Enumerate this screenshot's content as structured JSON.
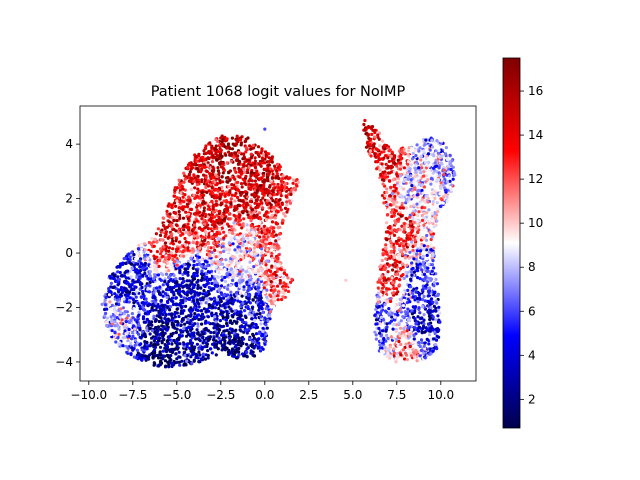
{
  "chart_data": {
    "type": "scatter",
    "title": "Patient 1068 logit values for NoIMP",
    "xlabel": "",
    "ylabel": "",
    "xlim": [
      -10.5,
      12.0
    ],
    "ylim": [
      -4.7,
      5.4
    ],
    "x_ticks": [
      -10.0,
      -7.5,
      -5.0,
      -2.5,
      0.0,
      2.5,
      5.0,
      7.5,
      10.0
    ],
    "x_tick_labels": [
      "−10.0",
      "−7.5",
      "−5.0",
      "−2.5",
      "0.0",
      "2.5",
      "5.0",
      "7.5",
      "10.0"
    ],
    "y_ticks": [
      -4,
      -2,
      0,
      2,
      4
    ],
    "y_tick_labels": [
      "−4",
      "−2",
      "0",
      "2",
      "4"
    ],
    "colormap": "seismic",
    "colorbar": {
      "min": 0.7,
      "max": 17.5,
      "ticks": [
        2,
        4,
        6,
        8,
        10,
        12,
        14,
        16
      ],
      "tick_labels": [
        "2",
        "4",
        "6",
        "8",
        "10",
        "12",
        "14",
        "16"
      ]
    },
    "grid": false,
    "legend": "none",
    "clusters": [
      {
        "region": [
          [
            -9.3,
            -2.0
          ],
          [
            -8.8,
            -0.8
          ],
          [
            -7.6,
            0.1
          ],
          [
            -6.2,
            0.7
          ],
          [
            -5.6,
            1.6
          ],
          [
            -5.0,
            2.6
          ],
          [
            -3.9,
            3.7
          ],
          [
            -2.6,
            4.3
          ],
          [
            -1.0,
            4.3
          ],
          [
            0.4,
            3.6
          ],
          [
            1.3,
            2.8
          ],
          [
            1.9,
            2.7
          ],
          [
            1.8,
            2.3
          ],
          [
            1.2,
            1.4
          ],
          [
            0.8,
            0.5
          ],
          [
            1.0,
            -0.5
          ],
          [
            1.6,
            -1.0
          ],
          [
            1.4,
            -1.6
          ],
          [
            0.6,
            -1.8
          ],
          [
            0.2,
            -2.7
          ],
          [
            0.0,
            -3.5
          ],
          [
            -0.6,
            -3.8
          ],
          [
            -1.6,
            -3.9
          ],
          [
            -2.6,
            -3.7
          ],
          [
            -3.2,
            -3.9
          ],
          [
            -4.3,
            -4.1
          ],
          [
            -5.5,
            -4.2
          ],
          [
            -6.6,
            -4.1
          ],
          [
            -7.6,
            -3.8
          ],
          [
            -8.6,
            -3.2
          ],
          [
            -9.0,
            -2.7
          ]
        ],
        "value_anchors": [
          {
            "x": -2.0,
            "y": 3.4,
            "value": 15.5
          },
          {
            "x": -0.6,
            "y": 2.2,
            "value": 15.0
          },
          {
            "x": -3.4,
            "y": 1.6,
            "value": 14.0
          },
          {
            "x": -5.4,
            "y": 0.6,
            "value": 13.5
          },
          {
            "x": 0.4,
            "y": 0.8,
            "value": 12.0
          },
          {
            "x": -1.2,
            "y": -0.2,
            "value": 9.0
          },
          {
            "x": -7.8,
            "y": -1.2,
            "value": 4.0
          },
          {
            "x": -4.4,
            "y": -1.4,
            "value": 3.0
          },
          {
            "x": -6.0,
            "y": -3.3,
            "value": 2.0
          },
          {
            "x": -1.6,
            "y": -3.1,
            "value": 2.0
          },
          {
            "x": -0.6,
            "y": -2.0,
            "value": 4.0
          },
          {
            "x": 0.6,
            "y": -1.2,
            "value": 12.0
          },
          {
            "x": -8.2,
            "y": -2.6,
            "value": 8.0
          }
        ]
      },
      {
        "region": [
          [
            5.6,
            5.0
          ],
          [
            6.3,
            4.7
          ],
          [
            6.8,
            4.1
          ],
          [
            7.4,
            3.7
          ],
          [
            8.2,
            4.0
          ],
          [
            9.2,
            4.3
          ],
          [
            10.0,
            4.2
          ],
          [
            10.7,
            3.5
          ],
          [
            10.9,
            3.0
          ],
          [
            10.6,
            2.2
          ],
          [
            10.0,
            1.4
          ],
          [
            9.6,
            0.8
          ],
          [
            9.6,
            0.0
          ],
          [
            9.8,
            -0.8
          ],
          [
            9.9,
            -1.5
          ],
          [
            10.0,
            -2.5
          ],
          [
            9.8,
            -3.5
          ],
          [
            9.2,
            -3.9
          ],
          [
            8.3,
            -4.0
          ],
          [
            7.3,
            -4.0
          ],
          [
            6.5,
            -3.6
          ],
          [
            6.2,
            -2.8
          ],
          [
            6.3,
            -1.8
          ],
          [
            6.5,
            -0.5
          ],
          [
            6.9,
            0.6
          ],
          [
            6.8,
            1.5
          ],
          [
            6.6,
            2.5
          ],
          [
            6.3,
            3.2
          ],
          [
            5.8,
            3.8
          ],
          [
            5.5,
            4.5
          ]
        ],
        "value_anchors": [
          {
            "x": 5.9,
            "y": 4.4,
            "value": 15.0
          },
          {
            "x": 6.7,
            "y": 3.6,
            "value": 14.0
          },
          {
            "x": 9.4,
            "y": 3.5,
            "value": 7.5
          },
          {
            "x": 8.6,
            "y": 2.2,
            "value": 8.5
          },
          {
            "x": 7.6,
            "y": 0.8,
            "value": 13.0
          },
          {
            "x": 7.3,
            "y": -0.8,
            "value": 13.0
          },
          {
            "x": 8.6,
            "y": -1.0,
            "value": 6.0
          },
          {
            "x": 9.2,
            "y": -2.5,
            "value": 4.0
          },
          {
            "x": 6.6,
            "y": -2.6,
            "value": 6.0
          },
          {
            "x": 7.8,
            "y": -3.6,
            "value": 11.0
          }
        ]
      }
    ],
    "isolated_points": [
      {
        "x": 0.0,
        "y": 4.55,
        "value": 6.0
      },
      {
        "x": 4.6,
        "y": -1.0,
        "value": 10.0
      },
      {
        "x": 1.9,
        "y": 2.6,
        "value": 10.5
      }
    ]
  }
}
